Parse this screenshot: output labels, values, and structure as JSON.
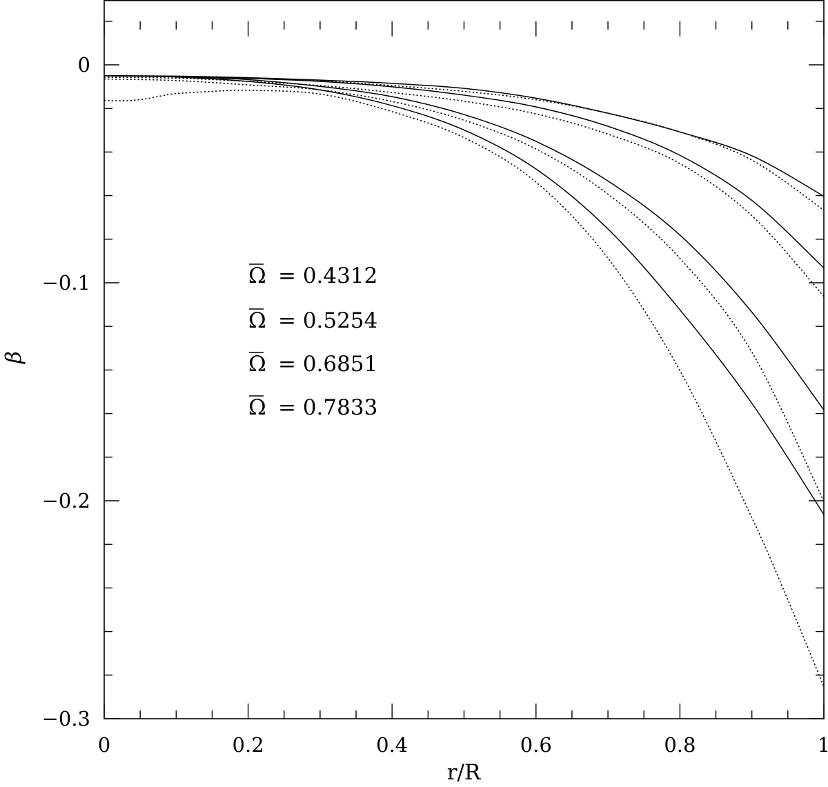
{
  "chart_data": {
    "type": "line",
    "xlabel": "r/R",
    "ylabel": "β",
    "xlim": [
      0,
      1
    ],
    "ylim": [
      -0.3,
      0.02
    ],
    "x_ticks": [
      0,
      0.2,
      0.4,
      0.6,
      0.8,
      1
    ],
    "x_tick_labels": [
      "0",
      "0.2",
      "0.4",
      "0.6",
      "0.8",
      "1"
    ],
    "y_ticks": [
      0,
      -0.1,
      -0.2,
      -0.3
    ],
    "y_tick_labels": [
      "0",
      "−0.1",
      "−0.2",
      "−0.3"
    ],
    "grid": false,
    "annotations": [
      {
        "symbol": "Ω",
        "text": "=  0.4312"
      },
      {
        "symbol": "Ω",
        "text": "=  0.5254"
      },
      {
        "symbol": "Ω",
        "text": "=  0.6851"
      },
      {
        "symbol": "Ω",
        "text": "=  0.7833"
      }
    ],
    "series": [
      {
        "style": "solid",
        "x": [
          0,
          0.1,
          0.2,
          0.3,
          0.4,
          0.5,
          0.6,
          0.7,
          0.8,
          0.9,
          1.0
        ],
        "y": [
          -0.005,
          -0.0052,
          -0.0059,
          -0.007,
          -0.0085,
          -0.0108,
          -0.0153,
          -0.0222,
          -0.0308,
          -0.0417,
          -0.0603
        ]
      },
      {
        "style": "dotted",
        "x": [
          0,
          0.1,
          0.2,
          0.3,
          0.4,
          0.5,
          0.6,
          0.7,
          0.8,
          0.9,
          1.0
        ],
        "y": [
          -0.005,
          -0.0052,
          -0.0059,
          -0.0073,
          -0.0095,
          -0.0122,
          -0.016,
          -0.0222,
          -0.0308,
          -0.0437,
          -0.0667
        ]
      },
      {
        "style": "solid",
        "x": [
          0,
          0.1,
          0.2,
          0.3,
          0.4,
          0.5,
          0.6,
          0.7,
          0.8,
          0.9,
          1.0
        ],
        "y": [
          -0.005,
          -0.0053,
          -0.0062,
          -0.0076,
          -0.0101,
          -0.0139,
          -0.0193,
          -0.0282,
          -0.0415,
          -0.0622,
          -0.0932
        ]
      },
      {
        "style": "dotted",
        "x": [
          0,
          0.1,
          0.2,
          0.3,
          0.4,
          0.5,
          0.6,
          0.7,
          0.8,
          0.9,
          1.0
        ],
        "y": [
          -0.0057,
          -0.0061,
          -0.0076,
          -0.0095,
          -0.0127,
          -0.0167,
          -0.0225,
          -0.0318,
          -0.0453,
          -0.0692,
          -0.1062
        ]
      },
      {
        "style": "solid",
        "x": [
          0,
          0.1,
          0.2,
          0.3,
          0.4,
          0.5,
          0.6,
          0.7,
          0.8,
          0.9,
          1.0
        ],
        "y": [
          -0.005,
          -0.0054,
          -0.0068,
          -0.0099,
          -0.0146,
          -0.0228,
          -0.0351,
          -0.0533,
          -0.0781,
          -0.1135,
          -0.1583
        ]
      },
      {
        "style": "dotted",
        "x": [
          0,
          0.1,
          0.2,
          0.3,
          0.4,
          0.5,
          0.6,
          0.7,
          0.8,
          0.9,
          1.0
        ],
        "y": [
          -0.0065,
          -0.0072,
          -0.0092,
          -0.0115,
          -0.0168,
          -0.0254,
          -0.0386,
          -0.0593,
          -0.0888,
          -0.1318,
          -0.2003
        ]
      },
      {
        "style": "solid",
        "x": [
          0,
          0.1,
          0.2,
          0.3,
          0.4,
          0.5,
          0.6,
          0.7,
          0.8,
          0.9,
          1.0
        ],
        "y": [
          -0.005,
          -0.0056,
          -0.0076,
          -0.0115,
          -0.0187,
          -0.0299,
          -0.0478,
          -0.0753,
          -0.1124,
          -0.1553,
          -0.2063
        ]
      },
      {
        "style": "dotted",
        "x": [
          0,
          0.02,
          0.04,
          0.06,
          0.08,
          0.1,
          0.15,
          0.2,
          0.3,
          0.4,
          0.5,
          0.6,
          0.7,
          0.8,
          0.9,
          0.95,
          1.0
        ],
        "y": [
          -0.0163,
          -0.0165,
          -0.0163,
          -0.0155,
          -0.0142,
          -0.0132,
          -0.0122,
          -0.0117,
          -0.0134,
          -0.0215,
          -0.0334,
          -0.0538,
          -0.0887,
          -0.1403,
          -0.2078,
          -0.2455,
          -0.2853
        ]
      }
    ]
  }
}
